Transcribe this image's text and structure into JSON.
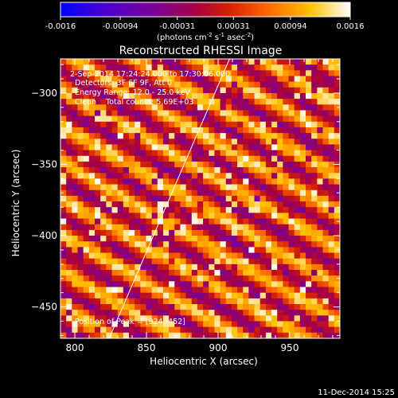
{
  "chart_data": {
    "type": "heatmap",
    "title": "Reconstructed RHESSI Image",
    "xlabel": "Heliocentric X (arcsec)",
    "ylabel": "Heliocentric Y (arcsec)",
    "xlim": [
      790,
      985
    ],
    "ylim": [
      -472,
      -276
    ],
    "xticks": [
      800,
      850,
      900,
      950
    ],
    "yticks": [
      -300,
      -350,
      -400,
      -450
    ],
    "colorbar": {
      "ticks": [
        "-0.0016",
        "-0.00094",
        "-0.00031",
        "0.00031",
        "0.00094",
        "0.0016"
      ],
      "range": [
        -0.0016,
        0.0016
      ],
      "unit_label": "(photons cm-2 s-1 asec-2)"
    },
    "annotations": [
      "2-Sep-2014 17:24:24.000 to 17:30:06.000",
      "Detectors: 3F 6F 9F, Att 0",
      "Energy Range: 12.0 - 25.0 keV",
      "Clean    Total counts: 5.69E+03",
      "Position of Peak = [924,-452]"
    ],
    "peak_position": [
      924,
      -452
    ],
    "limb_line": [
      [
        824,
        -472
      ],
      [
        908,
        -276
      ]
    ],
    "pattern": {
      "description_of_fringes": "diagonal modulation stripes",
      "stripe_direction_deg": 60,
      "stripe_period_arcsec": 22,
      "pixel_size_arcsec": 4,
      "grid": [
        49,
        49
      ]
    },
    "timestamp": "11-Dec-2014 15:25"
  }
}
